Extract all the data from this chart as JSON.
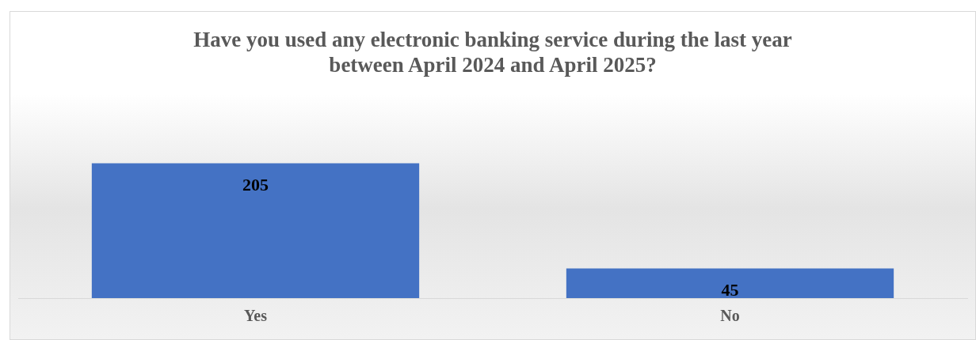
{
  "chart_data": {
    "type": "bar",
    "title": "Have you used any electronic banking service during the last year\nbetween April 2024 and April 2025?",
    "categories": [
      "Yes",
      "No"
    ],
    "values": [
      205,
      45
    ],
    "color": "#4472c4",
    "data_labels": true,
    "grid": false,
    "legend": false
  }
}
